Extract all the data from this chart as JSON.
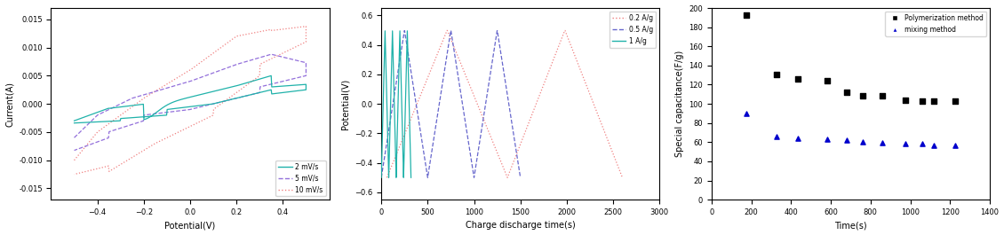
{
  "cv_xlim": [
    -0.6,
    0.6
  ],
  "cv_ylim": [
    -0.017,
    0.017
  ],
  "cv_xlabel": "Potential(V)",
  "cv_ylabel": "Current(A)",
  "cv_xticks": [
    -0.4,
    -0.2,
    0.0,
    0.2,
    0.4
  ],
  "cv_yticks": [
    -0.015,
    -0.01,
    -0.005,
    0.0,
    0.005,
    0.01,
    0.015
  ],
  "cd_xlim": [
    0,
    3000
  ],
  "cd_ylim": [
    -0.65,
    0.65
  ],
  "cd_xlabel": "Charge discharge time(s)",
  "cd_ylabel": "Potential(V)",
  "cd_xticks": [
    0,
    500,
    1000,
    1500,
    2000,
    2500,
    3000
  ],
  "cd_yticks": [
    -0.6,
    -0.4,
    -0.2,
    0.0,
    0.2,
    0.4,
    0.6
  ],
  "sc_xlim": [
    0,
    1400
  ],
  "sc_ylim": [
    0,
    200
  ],
  "sc_xlabel": "Time(s)",
  "sc_ylabel": "Special capacitance(F/g)",
  "sc_xticks": [
    0,
    200,
    400,
    600,
    800,
    1000,
    1200,
    1400
  ],
  "sc_yticks": [
    0,
    20,
    40,
    60,
    80,
    100,
    120,
    140,
    160,
    180,
    200
  ],
  "poly_time": [
    175,
    325,
    435,
    580,
    680,
    760,
    860,
    975,
    1060,
    1120,
    1225
  ],
  "poly_cap": [
    193,
    131,
    126,
    124,
    112,
    108,
    108,
    104,
    103,
    103,
    103
  ],
  "mix_time": [
    175,
    325,
    435,
    580,
    680,
    760,
    860,
    975,
    1060,
    1120,
    1225
  ],
  "mix_cap": [
    90,
    66,
    64,
    63,
    62,
    60,
    59,
    58,
    58,
    57,
    57
  ],
  "cv_color_2mv": "#20b2aa",
  "cv_color_5mv": "#9370db",
  "cv_color_10mv": "#f08080",
  "cd_color_02": "#f08080",
  "cd_color_05": "#6666cc",
  "cd_color_1": "#20b2aa",
  "poly_color": "#000000",
  "mix_color": "#0000cc"
}
